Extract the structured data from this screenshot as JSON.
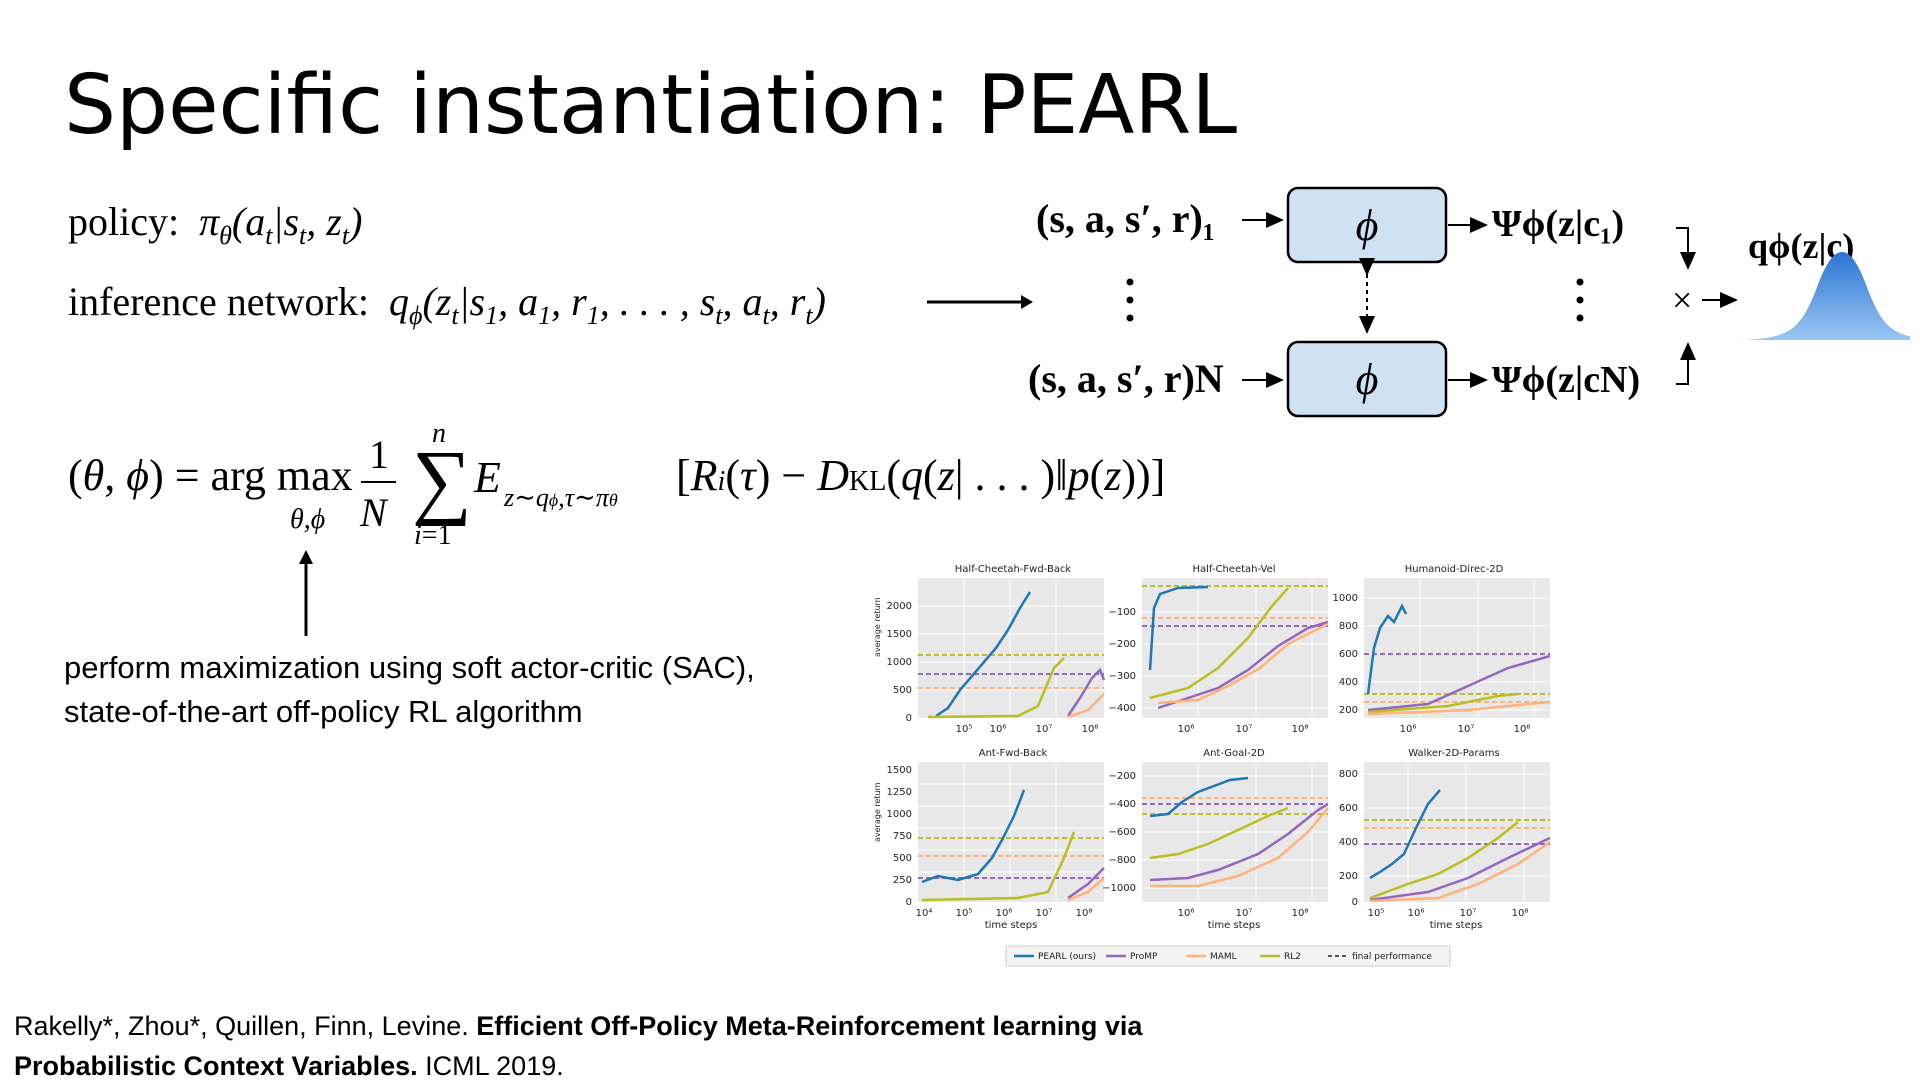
{
  "slide": {
    "title": "Specific instantiation: PEARL"
  },
  "equations": {
    "policy_label": "policy:",
    "policy_expr": "πθ(at|st, zt)",
    "inference_label": "inference network:",
    "inference_expr": "qϕ(zt|s1, a1, r1, ..., st, at, rt)",
    "objective_expr": "(θ, ϕ) = arg max θ,ϕ 1/N Σ i=1..n E z∼qϕ, τ∼πθ [Ri(τ) − DKL(q(z|...)‖p(z))]"
  },
  "diagram": {
    "input_top": "(s, a, s′, r)₁",
    "input_bottom": "(s, a, s′, r)N",
    "encoder_label": "ϕ",
    "psi_top": "Ψϕ(z|c₁)",
    "psi_bottom": "Ψϕ(z|cN)",
    "product_symbol": "×",
    "posterior_label": "qϕ(z|c)"
  },
  "caption": {
    "line1": "perform maximization using soft actor-critic (SAC),",
    "line2": "state-of-the-art off-policy RL algorithm"
  },
  "citation": {
    "authors": "Rakelly*, Zhou*, Quillen, Finn, Levine.",
    "title_part1": "Efficient Off-Policy Meta-Reinforcement learning via",
    "title_part2": "Probabilistic Context Variables.",
    "venue": "ICML 2019."
  },
  "chart_data": [
    {
      "type": "line",
      "title": "Half-Cheetah-Fwd-Back",
      "ylabel": "average return",
      "xlabel": "",
      "yticks": [
        "0",
        "500",
        "1000",
        "1500",
        "2000"
      ],
      "xticks": [
        "10⁵",
        "10⁶",
        "10⁷",
        "10⁸"
      ],
      "ylim": [
        0,
        2000
      ]
    },
    {
      "type": "line",
      "title": "Half-Cheetah-Vel",
      "ylabel": "",
      "xlabel": "",
      "yticks": [
        "−400",
        "−300",
        "−200",
        "−100"
      ],
      "xticks": [
        "10⁶",
        "10⁷",
        "10⁸"
      ],
      "ylim": [
        -450,
        -50
      ]
    },
    {
      "type": "line",
      "title": "Humanoid-Direc-2D",
      "ylabel": "",
      "xlabel": "",
      "yticks": [
        "200",
        "400",
        "600",
        "800",
        "1000"
      ],
      "xticks": [
        "10⁶",
        "10⁷",
        "10⁸"
      ],
      "ylim": [
        100,
        1100
      ]
    },
    {
      "type": "line",
      "title": "Ant-Fwd-Back",
      "ylabel": "average return",
      "xlabel": "time steps",
      "yticks": [
        "0",
        "250",
        "500",
        "750",
        "1000",
        "1250",
        "1500"
      ],
      "xticks": [
        "10⁴",
        "10⁵",
        "10⁶",
        "10⁷",
        "10⁸"
      ],
      "ylim": [
        0,
        1500
      ]
    },
    {
      "type": "line",
      "title": "Ant-Goal-2D",
      "ylabel": "",
      "xlabel": "time steps",
      "yticks": [
        "−1000",
        "−800",
        "−600",
        "−400",
        "−200"
      ],
      "xticks": [
        "10⁶",
        "10⁷",
        "10⁸"
      ],
      "ylim": [
        -1000,
        -150
      ]
    },
    {
      "type": "line",
      "title": "Walker-2D-Params",
      "ylabel": "",
      "xlabel": "time steps",
      "yticks": [
        "0",
        "200",
        "400",
        "600",
        "800"
      ],
      "xticks": [
        "10⁵",
        "10⁶",
        "10⁷",
        "10⁸"
      ],
      "ylim": [
        0,
        850
      ]
    }
  ],
  "legend": [
    {
      "name": "PEARL (ours)",
      "color": "#1f77b4"
    },
    {
      "name": "ProMP",
      "color": "#9467bd"
    },
    {
      "name": "MAML",
      "color": "#ffb27a"
    },
    {
      "name": "RL2",
      "color": "#bcbd22"
    },
    {
      "name": "final performance",
      "color": "#555555"
    }
  ]
}
